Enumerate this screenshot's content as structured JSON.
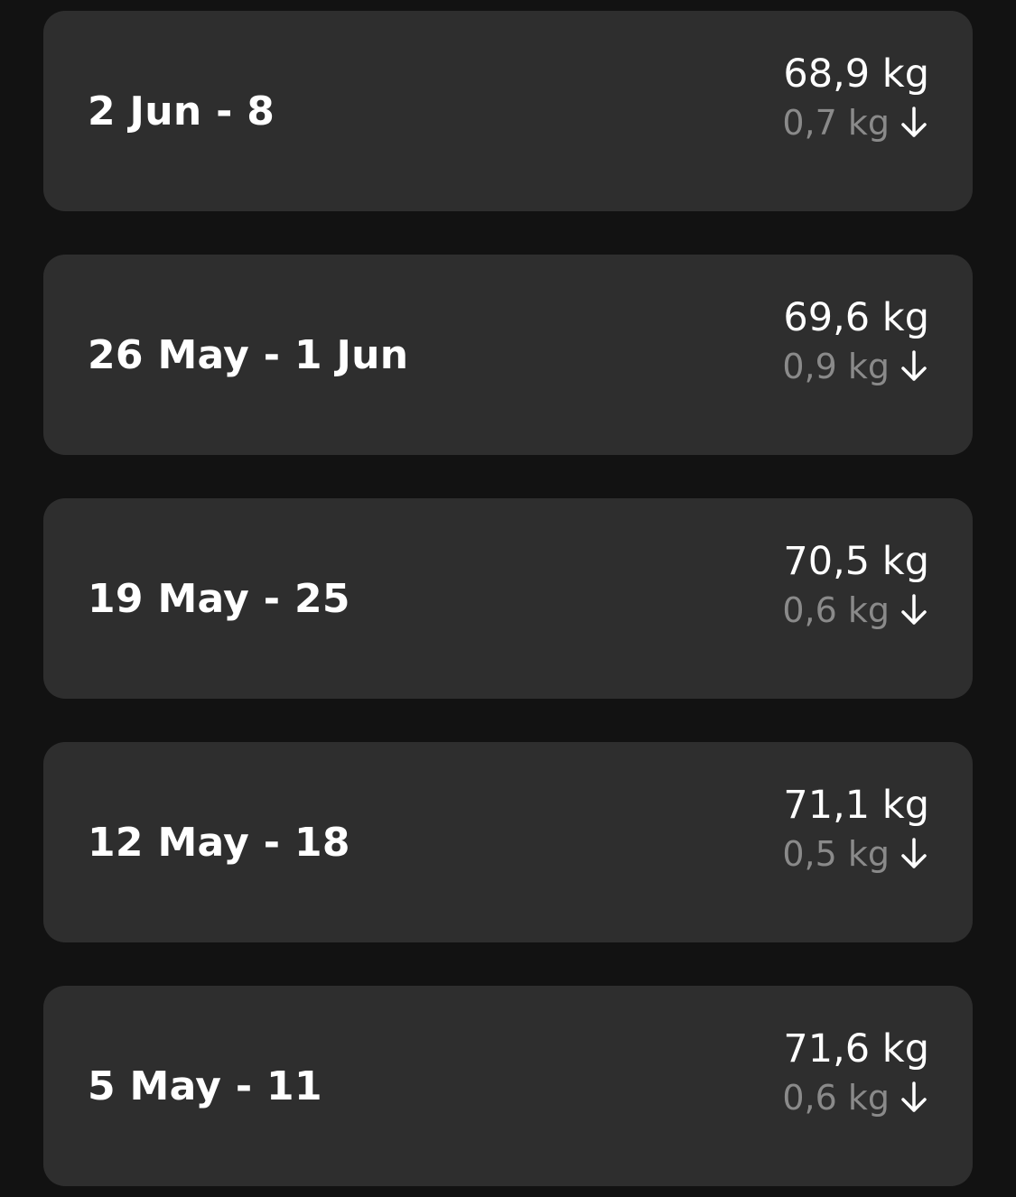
{
  "colors": {
    "background": "#121212",
    "card": "#2e2e2e",
    "primary_text": "#ffffff",
    "secondary_text": "#8a8a8a"
  },
  "weeks": [
    {
      "range": "2 Jun - 8",
      "weight": "68,9 kg",
      "change": "0,7 kg",
      "trend_icon": "arrow-down-icon"
    },
    {
      "range": "26 May - 1 Jun",
      "weight": "69,6 kg",
      "change": "0,9 kg",
      "trend_icon": "arrow-down-icon"
    },
    {
      "range": "19 May - 25",
      "weight": "70,5 kg",
      "change": "0,6 kg",
      "trend_icon": "arrow-down-icon"
    },
    {
      "range": "12 May - 18",
      "weight": "71,1 kg",
      "change": "0,5 kg",
      "trend_icon": "arrow-down-icon"
    },
    {
      "range": "5 May - 11",
      "weight": "71,6 kg",
      "change": "0,6 kg",
      "trend_icon": "arrow-down-icon"
    }
  ]
}
